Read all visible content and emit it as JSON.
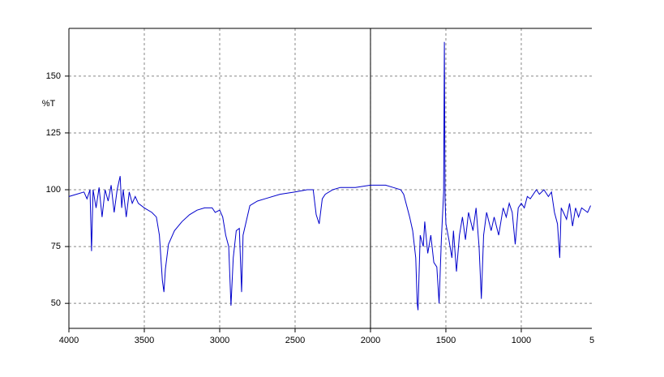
{
  "chart_data": {
    "type": "line",
    "y_label": "%T",
    "xlim": [
      4000,
      532
    ],
    "ylim": [
      39,
      171
    ],
    "xticks": [
      4000,
      3500,
      3000,
      2500,
      2000,
      1500,
      1000,
      {
        "value": 500,
        "label": "5"
      }
    ],
    "yticks": [
      50,
      75,
      100,
      125,
      150
    ],
    "grid": true,
    "cursor_x": 2000,
    "series": [
      {
        "color": "#0000cc",
        "x": [
          4000,
          3950,
          3900,
          3880,
          3860,
          3850,
          3840,
          3820,
          3800,
          3780,
          3760,
          3740,
          3720,
          3700,
          3680,
          3660,
          3650,
          3640,
          3620,
          3600,
          3580,
          3560,
          3540,
          3500,
          3450,
          3420,
          3400,
          3380,
          3370,
          3360,
          3340,
          3300,
          3250,
          3200,
          3150,
          3100,
          3050,
          3030,
          3000,
          2980,
          2960,
          2940,
          2925,
          2910,
          2890,
          2870,
          2855,
          2845,
          2800,
          2750,
          2700,
          2600,
          2500,
          2420,
          2380,
          2360,
          2340,
          2320,
          2300,
          2250,
          2200,
          2100,
          2000,
          1900,
          1850,
          1800,
          1780,
          1760,
          1740,
          1720,
          1700,
          1690,
          1685,
          1670,
          1650,
          1640,
          1620,
          1600,
          1580,
          1560,
          1545,
          1530,
          1515,
          1510,
          1505,
          1500,
          1480,
          1460,
          1450,
          1430,
          1410,
          1390,
          1370,
          1350,
          1320,
          1300,
          1280,
          1265,
          1250,
          1230,
          1200,
          1180,
          1150,
          1120,
          1100,
          1080,
          1060,
          1040,
          1020,
          1000,
          980,
          960,
          940,
          900,
          880,
          850,
          820,
          800,
          780,
          760,
          745,
          735,
          720,
          700,
          680,
          660,
          640,
          620,
          600,
          560,
          540
        ],
        "values": [
          97,
          98,
          99,
          96,
          100,
          73,
          100,
          92,
          101,
          88,
          100,
          95,
          102,
          90,
          100,
          106,
          92,
          100,
          88,
          99,
          94,
          97,
          94,
          92,
          90,
          88,
          80,
          60,
          55,
          65,
          76,
          82,
          86,
          89,
          91,
          92,
          92,
          90,
          91,
          88,
          80,
          75,
          49,
          70,
          82,
          83,
          55,
          80,
          93,
          95,
          96,
          98,
          99,
          100,
          100,
          89,
          85,
          96,
          98,
          100,
          101,
          101,
          102,
          102,
          101,
          100,
          98,
          93,
          88,
          82,
          70,
          50,
          47,
          80,
          75,
          86,
          72,
          80,
          68,
          66,
          50,
          78,
          99,
          165,
          95,
          85,
          78,
          70,
          82,
          64,
          80,
          88,
          78,
          90,
          82,
          92,
          75,
          52,
          80,
          90,
          82,
          88,
          80,
          92,
          88,
          94,
          90,
          76,
          92,
          94,
          92,
          97,
          96,
          100,
          98,
          100,
          97,
          99,
          90,
          85,
          70,
          92,
          90,
          87,
          94,
          84,
          92,
          88,
          92,
          90,
          93
        ]
      }
    ]
  }
}
